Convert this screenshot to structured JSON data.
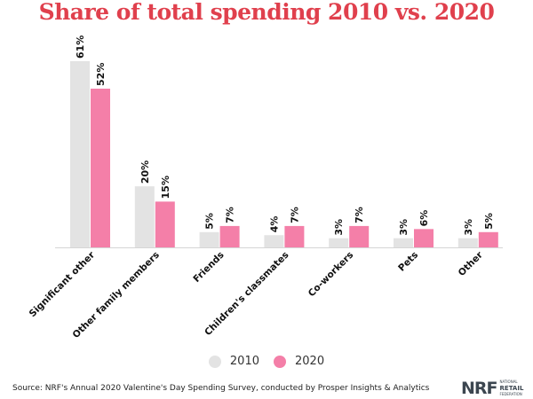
{
  "chart_data": {
    "type": "bar",
    "title": "Share of total spending 2010 vs. 2020",
    "xlabel": "",
    "ylabel": "",
    "ylim": [
      0,
      61
    ],
    "grid": false,
    "legend_position": "bottom",
    "categories": [
      "Significant other",
      "Other family members",
      "Friends",
      "Children's classmates",
      "Co-workers",
      "Pets",
      "Other"
    ],
    "series": [
      {
        "name": "2010",
        "color": "#e3e3e3",
        "values": [
          61,
          20,
          5,
          4,
          3,
          3,
          3
        ]
      },
      {
        "name": "2020",
        "color": "#f47fa8",
        "values": [
          52,
          15,
          7,
          7,
          7,
          6,
          5
        ]
      }
    ],
    "value_suffix": "%"
  },
  "legend": {
    "items": [
      {
        "label": "2010",
        "color": "#e3e3e3"
      },
      {
        "label": "2020",
        "color": "#f47fa8"
      }
    ]
  },
  "footer": {
    "source": "Source: NRF's Annual 2020 Valentine's Day Spending Survey, conducted by Prosper Insights & Analytics",
    "logo_main": "NRF",
    "logo_line1": "NATIONAL",
    "logo_line2": "RETAIL",
    "logo_line3": "FEDERATION"
  }
}
